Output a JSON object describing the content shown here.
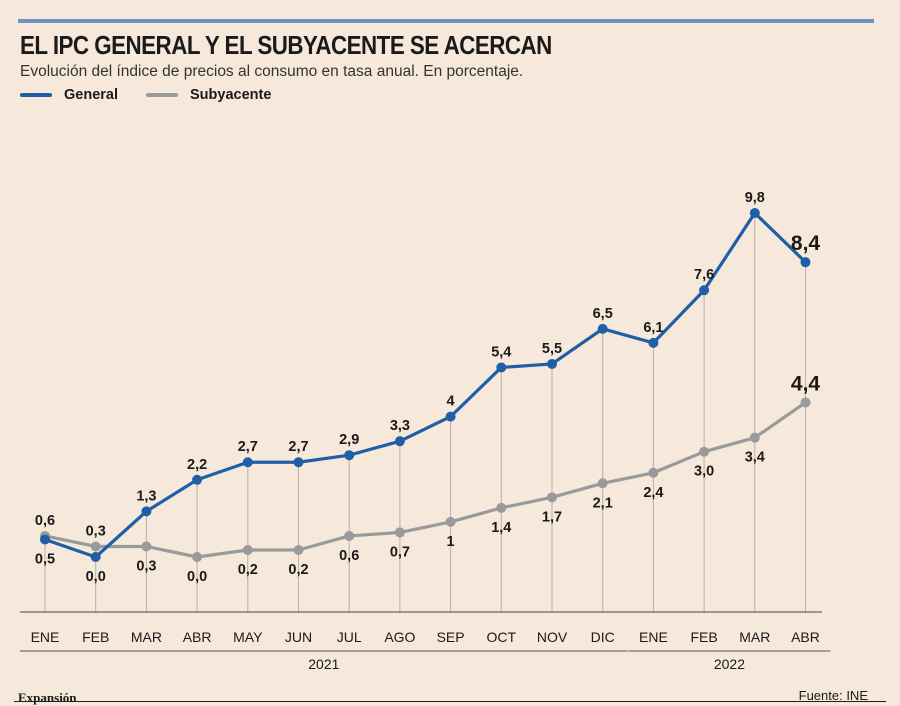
{
  "header": {
    "title": "EL IPC GENERAL Y EL SUBYACENTE SE ACERCAN",
    "subtitle": "Evolución del índice de precios al consumo en tasa anual. En porcentaje."
  },
  "colors": {
    "general": "#1f5fa6",
    "subyacente": "#9a9a9a",
    "background": "#f6e8da"
  },
  "chart_data": {
    "type": "line",
    "title": "EL IPC GENERAL Y EL SUBYACENTE SE ACERCAN",
    "subtitle": "Evolución del índice de precios al consumo en tasa anual. En porcentaje.",
    "categories": [
      "ENE",
      "FEB",
      "MAR",
      "ABR",
      "MAY",
      "JUN",
      "JUL",
      "AGO",
      "SEP",
      "OCT",
      "NOV",
      "DIC",
      "ENE",
      "FEB",
      "MAR",
      "ABR"
    ],
    "year_groups": [
      {
        "label": "2021",
        "start": 0,
        "end": 11
      },
      {
        "label": "2022",
        "start": 12,
        "end": 15
      }
    ],
    "series": [
      {
        "name": "General",
        "color": "#1f5fa6",
        "values": [
          0.5,
          0.0,
          1.3,
          2.2,
          2.7,
          2.7,
          2.9,
          3.3,
          4.0,
          5.4,
          5.5,
          6.5,
          6.1,
          7.6,
          9.8,
          8.4
        ],
        "labels": [
          "0,5",
          "0,0",
          "1,3",
          "2,2",
          "2,7",
          "2,7",
          "2,9",
          "3,3",
          "4",
          "5,4",
          "5,5",
          "6,5",
          "6,1",
          "7,6",
          "9,8",
          "8,4"
        ],
        "label_pos": [
          "below",
          "below",
          "above",
          "above",
          "above",
          "above",
          "above",
          "above",
          "above",
          "above",
          "above",
          "above",
          "above",
          "above",
          "above",
          "above"
        ]
      },
      {
        "name": "Subyacente",
        "color": "#9a9a9a",
        "values": [
          0.6,
          0.3,
          0.3,
          0.0,
          0.2,
          0.2,
          0.6,
          0.7,
          1.0,
          1.4,
          1.7,
          2.1,
          2.4,
          3.0,
          3.4,
          4.4
        ],
        "labels": [
          "0,6",
          "0,3",
          "0,3",
          "0,0",
          "0,2",
          "0,2",
          "0,6",
          "0,7",
          "1",
          "1,4",
          "1,7",
          "2,1",
          "2,4",
          "3,0",
          "3,4",
          "4,4"
        ],
        "label_pos": [
          "above",
          "above",
          "below",
          "below",
          "below",
          "below",
          "below",
          "below",
          "below",
          "below",
          "below",
          "below",
          "below",
          "below",
          "below",
          "above"
        ]
      }
    ],
    "ylim": [
      0,
      9.8
    ],
    "grid": "vertical",
    "legend": "top-left"
  },
  "footer": {
    "brand": "Expansión",
    "source": "Fuente: INE"
  }
}
